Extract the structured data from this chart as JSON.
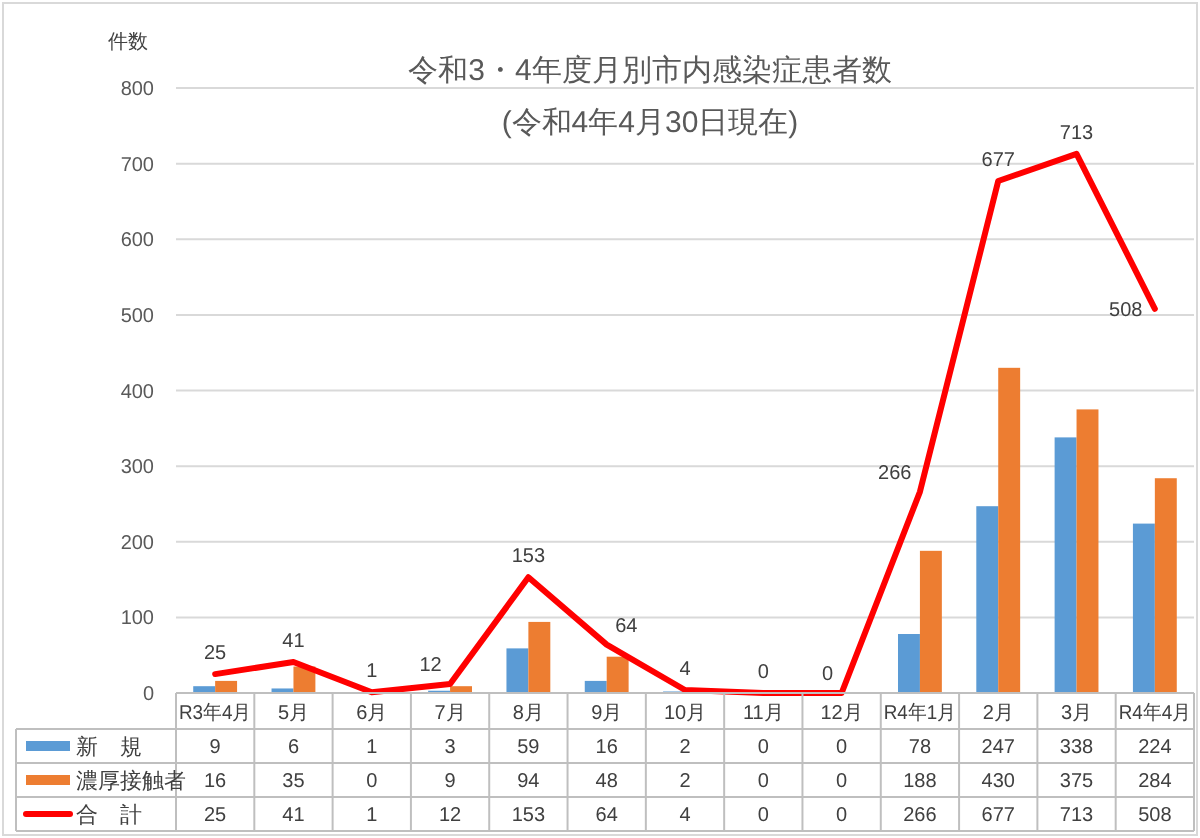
{
  "chart_data": {
    "type": "bar",
    "title": "令和3・4年度月別市内感染症患者数",
    "subtitle": "(令和4年4月30日現在)",
    "ylabel": "件数",
    "categories": [
      "R3年4月",
      "5月",
      "6月",
      "7月",
      "8月",
      "9月",
      "10月",
      "11月",
      "12月",
      "R4年1月",
      "2月",
      "3月",
      "R4年4月"
    ],
    "series": [
      {
        "name": "新　規",
        "color": "#5b9bd5",
        "values": [
          9,
          6,
          1,
          3,
          59,
          16,
          2,
          0,
          0,
          78,
          247,
          338,
          224
        ]
      },
      {
        "name": "濃厚接触者",
        "color": "#ed7d31",
        "values": [
          16,
          35,
          0,
          9,
          94,
          48,
          2,
          0,
          0,
          188,
          430,
          375,
          284
        ]
      },
      {
        "name": "合　計",
        "type": "line",
        "color": "#ff0000",
        "values": [
          25,
          41,
          1,
          12,
          153,
          64,
          4,
          0,
          0,
          266,
          677,
          713,
          508
        ]
      }
    ],
    "annotations": [
      {
        "text": "25",
        "x": "R3年4月",
        "y": 25
      },
      {
        "text": "41",
        "x": "5月",
        "y": 41
      },
      {
        "text": "1",
        "x": "6月",
        "y": 1
      },
      {
        "text": "12",
        "x": "7月",
        "y": 12
      },
      {
        "text": "153",
        "x": "8月",
        "y": 153
      },
      {
        "text": "64",
        "x": "9月",
        "y": 64
      },
      {
        "text": "4",
        "x": "10月",
        "y": 4
      },
      {
        "text": "0",
        "x": "11月",
        "y": 0
      },
      {
        "text": "0",
        "x": "12月",
        "y": 0
      },
      {
        "text": "266",
        "x": "R4年1月",
        "y": 266
      },
      {
        "text": "677",
        "x": "2月",
        "y": 677
      },
      {
        "text": "713",
        "x": "3月",
        "y": 713
      },
      {
        "text": "508",
        "x": "R4年4月",
        "y": 508
      }
    ],
    "ylim": [
      0,
      800
    ],
    "yticks": [
      0,
      100,
      200,
      300,
      400,
      500,
      600,
      700,
      800
    ],
    "grid": "y",
    "legend": "bottom",
    "data_labels": true
  }
}
